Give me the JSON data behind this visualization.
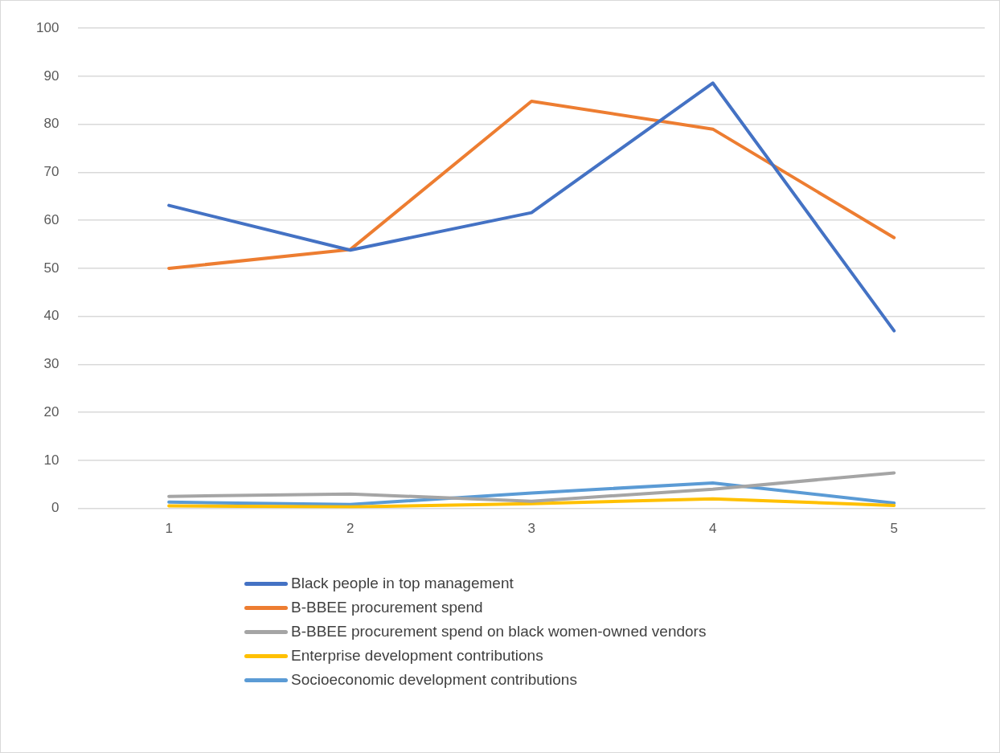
{
  "chart_data": {
    "type": "line",
    "categories": [
      "1",
      "2",
      "3",
      "4",
      "5"
    ],
    "series": [
      {
        "name": "Black people in top management",
        "color": "#4472c4",
        "values": [
          63.1,
          53.8,
          61.6,
          88.6,
          37
        ]
      },
      {
        "name": "B-BBEE procurement spend",
        "color": "#ed7d31",
        "values": [
          50,
          53.9,
          84.8,
          79,
          56.4
        ]
      },
      {
        "name": "B-BBEE procurement spend on black women-owned vendors",
        "color": "#a5a5a5",
        "values": [
          2.5,
          3,
          1.5,
          4,
          7.4
        ]
      },
      {
        "name": "Enterprise development contributions",
        "color": "#ffc000",
        "values": [
          0.5,
          0.3,
          1,
          2,
          0.6
        ]
      },
      {
        "name": "Socioeconomic development contributions",
        "color": "#5b9bd5",
        "values": [
          1.3,
          0.8,
          3.2,
          5.3,
          1.1
        ]
      }
    ],
    "ylim": [
      0,
      100
    ],
    "yticks": [
      0,
      10,
      20,
      30,
      40,
      50,
      60,
      70,
      80,
      90,
      100
    ],
    "grid": "y",
    "legend": "bottom",
    "marker": "none",
    "line_style": "solid"
  }
}
